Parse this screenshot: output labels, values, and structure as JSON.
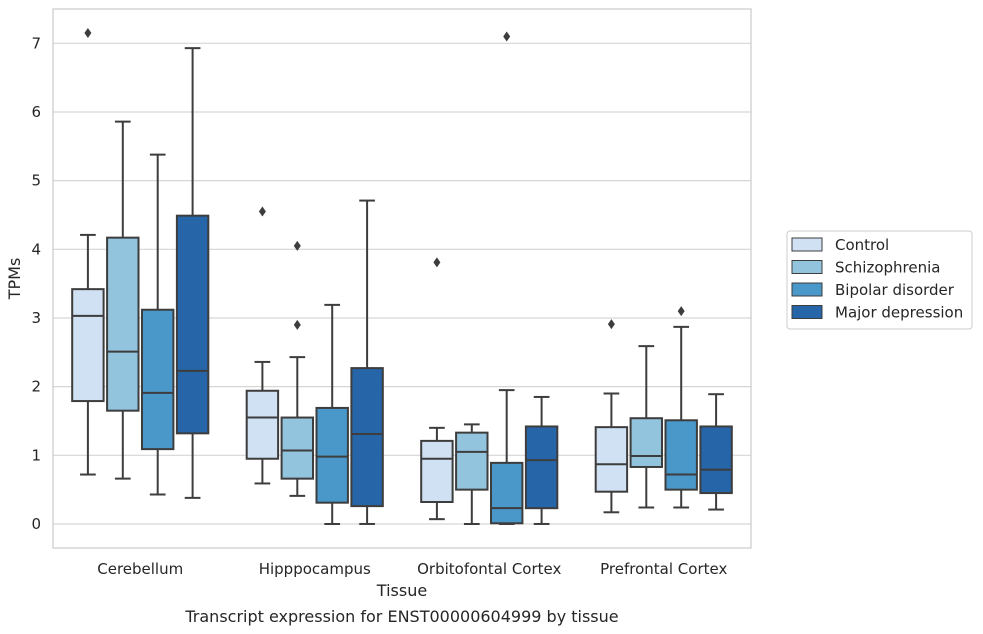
{
  "chart_data": {
    "type": "box",
    "title": "",
    "caption": "Transcript expression for ENST00000604999 by tissue",
    "xlabel": "Tissue",
    "ylabel": "TPMs",
    "ylim": [
      -0.35,
      7.5
    ],
    "yticks": [
      0,
      1,
      2,
      3,
      4,
      5,
      6,
      7
    ],
    "grid": "horizontal",
    "legend_position": "right",
    "categories": [
      "Cerebellum",
      "Hipppocampus",
      "Orbitofontal Cortex",
      "Prefrontal Cortex"
    ],
    "series": [
      {
        "name": "Control",
        "color": "#cfe1f2",
        "boxes": [
          {
            "whisker_low": 0.72,
            "q1": 1.79,
            "median": 3.03,
            "q3": 3.42,
            "whisker_high": 4.21,
            "outliers": [
              7.15
            ]
          },
          {
            "whisker_low": 0.59,
            "q1": 0.95,
            "median": 1.55,
            "q3": 1.94,
            "whisker_high": 2.36,
            "outliers": [
              4.55
            ]
          },
          {
            "whisker_low": 0.07,
            "q1": 0.32,
            "median": 0.95,
            "q3": 1.21,
            "whisker_high": 1.4,
            "outliers": [
              3.81
            ]
          },
          {
            "whisker_low": 0.17,
            "q1": 0.47,
            "median": 0.87,
            "q3": 1.41,
            "whisker_high": 1.9,
            "outliers": [
              2.91
            ]
          }
        ]
      },
      {
        "name": "Schizophrenia",
        "color": "#93c4de",
        "boxes": [
          {
            "whisker_low": 0.66,
            "q1": 1.65,
            "median": 2.51,
            "q3": 4.17,
            "whisker_high": 5.86,
            "outliers": []
          },
          {
            "whisker_low": 0.41,
            "q1": 0.66,
            "median": 1.07,
            "q3": 1.55,
            "whisker_high": 2.43,
            "outliers": [
              2.9,
              4.05
            ]
          },
          {
            "whisker_low": 0.0,
            "q1": 0.5,
            "median": 1.05,
            "q3": 1.33,
            "whisker_high": 1.45,
            "outliers": []
          },
          {
            "whisker_low": 0.24,
            "q1": 0.83,
            "median": 0.99,
            "q3": 1.54,
            "whisker_high": 2.59,
            "outliers": []
          }
        ]
      },
      {
        "name": "Bipolar disorder",
        "color": "#4a98c9",
        "boxes": [
          {
            "whisker_low": 0.43,
            "q1": 1.09,
            "median": 1.91,
            "q3": 3.12,
            "whisker_high": 5.38,
            "outliers": []
          },
          {
            "whisker_low": 0.0,
            "q1": 0.31,
            "median": 0.98,
            "q3": 1.69,
            "whisker_high": 3.19,
            "outliers": []
          },
          {
            "whisker_low": 0.0,
            "q1": 0.01,
            "median": 0.23,
            "q3": 0.89,
            "whisker_high": 1.95,
            "outliers": [
              7.1
            ]
          },
          {
            "whisker_low": 0.24,
            "q1": 0.5,
            "median": 0.72,
            "q3": 1.51,
            "whisker_high": 2.87,
            "outliers": [
              3.1
            ]
          }
        ]
      },
      {
        "name": "Major depression",
        "color": "#2565a8",
        "boxes": [
          {
            "whisker_low": 0.38,
            "q1": 1.32,
            "median": 2.23,
            "q3": 4.49,
            "whisker_high": 6.93,
            "outliers": []
          },
          {
            "whisker_low": 0.0,
            "q1": 0.26,
            "median": 1.31,
            "q3": 2.27,
            "whisker_high": 4.71,
            "outliers": []
          },
          {
            "whisker_low": 0.0,
            "q1": 0.23,
            "median": 0.93,
            "q3": 1.42,
            "whisker_high": 1.85,
            "outliers": []
          },
          {
            "whisker_low": 0.21,
            "q1": 0.45,
            "median": 0.79,
            "q3": 1.42,
            "whisker_high": 1.89,
            "outliers": []
          }
        ]
      }
    ]
  }
}
